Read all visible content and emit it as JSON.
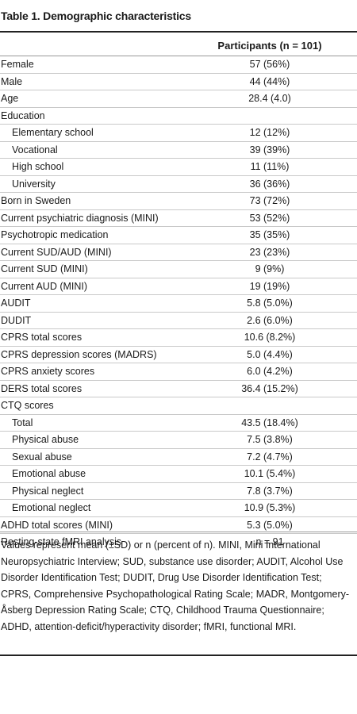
{
  "title": "Table 1. Demographic characteristics",
  "column_header": "Participants (n = 101)",
  "rows": [
    {
      "label": "Female",
      "value": "57 (56%)",
      "indent": false
    },
    {
      "label": "Male",
      "value": "44 (44%)",
      "indent": false
    },
    {
      "label": "Age",
      "value": "28.4 (4.0)",
      "indent": false
    },
    {
      "label": "Education",
      "value": "",
      "indent": false
    },
    {
      "label": "Elementary school",
      "value": "12 (12%)",
      "indent": true
    },
    {
      "label": "Vocational",
      "value": "39 (39%)",
      "indent": true
    },
    {
      "label": "High school",
      "value": "11 (11%)",
      "indent": true
    },
    {
      "label": "University",
      "value": "36 (36%)",
      "indent": true
    },
    {
      "label": "Born in Sweden",
      "value": "73 (72%)",
      "indent": false
    },
    {
      "label": "Current psychiatric diagnosis (MINI)",
      "value": "53 (52%)",
      "indent": false
    },
    {
      "label": "Psychotropic medication",
      "value": "35 (35%)",
      "indent": false
    },
    {
      "label": "Current SUD/AUD (MINI)",
      "value": "23 (23%)",
      "indent": false
    },
    {
      "label": "Current SUD (MINI)",
      "value": "9 (9%)",
      "indent": false
    },
    {
      "label": "Current AUD (MINI)",
      "value": "19 (19%)",
      "indent": false
    },
    {
      "label": "AUDIT",
      "value": "5.8 (5.0%)",
      "indent": false
    },
    {
      "label": "DUDIT",
      "value": "2.6 (6.0%)",
      "indent": false
    },
    {
      "label": "CPRS total scores",
      "value": "10.6 (8.2%)",
      "indent": false
    },
    {
      "label": "CPRS depression scores (MADRS)",
      "value": "5.0 (4.4%)",
      "indent": false
    },
    {
      "label": "CPRS anxiety scores",
      "value": "6.0 (4.2%)",
      "indent": false
    },
    {
      "label": "DERS total scores",
      "value": "36.4 (15.2%)",
      "indent": false
    },
    {
      "label": "CTQ scores",
      "value": "",
      "indent": false
    },
    {
      "label": "Total",
      "value": "43.5 (18.4%)",
      "indent": true
    },
    {
      "label": "Physical abuse",
      "value": "7.5 (3.8%)",
      "indent": true
    },
    {
      "label": "Sexual abuse",
      "value": "7.2 (4.7%)",
      "indent": true
    },
    {
      "label": "Emotional abuse",
      "value": "10.1 (5.4%)",
      "indent": true
    },
    {
      "label": "Physical neglect",
      "value": "7.8 (3.7%)",
      "indent": true
    },
    {
      "label": "Emotional neglect",
      "value": "10.9 (5.3%)",
      "indent": true
    },
    {
      "label": "ADHD total scores (MINI)",
      "value": "5.3 (5.0%)",
      "indent": false
    },
    {
      "label": "Resting-state fMRI analysis",
      "value": "n = 91",
      "indent": false
    }
  ],
  "footnote": "Values represent mean (±SD) or n (percent of n). MINI, Mini International Neuropsychiatric Interview; SUD, substance use disorder; AUDIT, Alcohol Use Disorder Identification Test; DUDIT, Drug Use Disorder Identification Test; CPRS, Comprehensive Psychopathological Rating Scale; MADR, Montgomery-Åsberg Depression Rating Scale; CTQ, Childhood Trauma Questionnaire; ADHD, attention-deficit/hyperactivity disorder; fMRI, functional MRI."
}
